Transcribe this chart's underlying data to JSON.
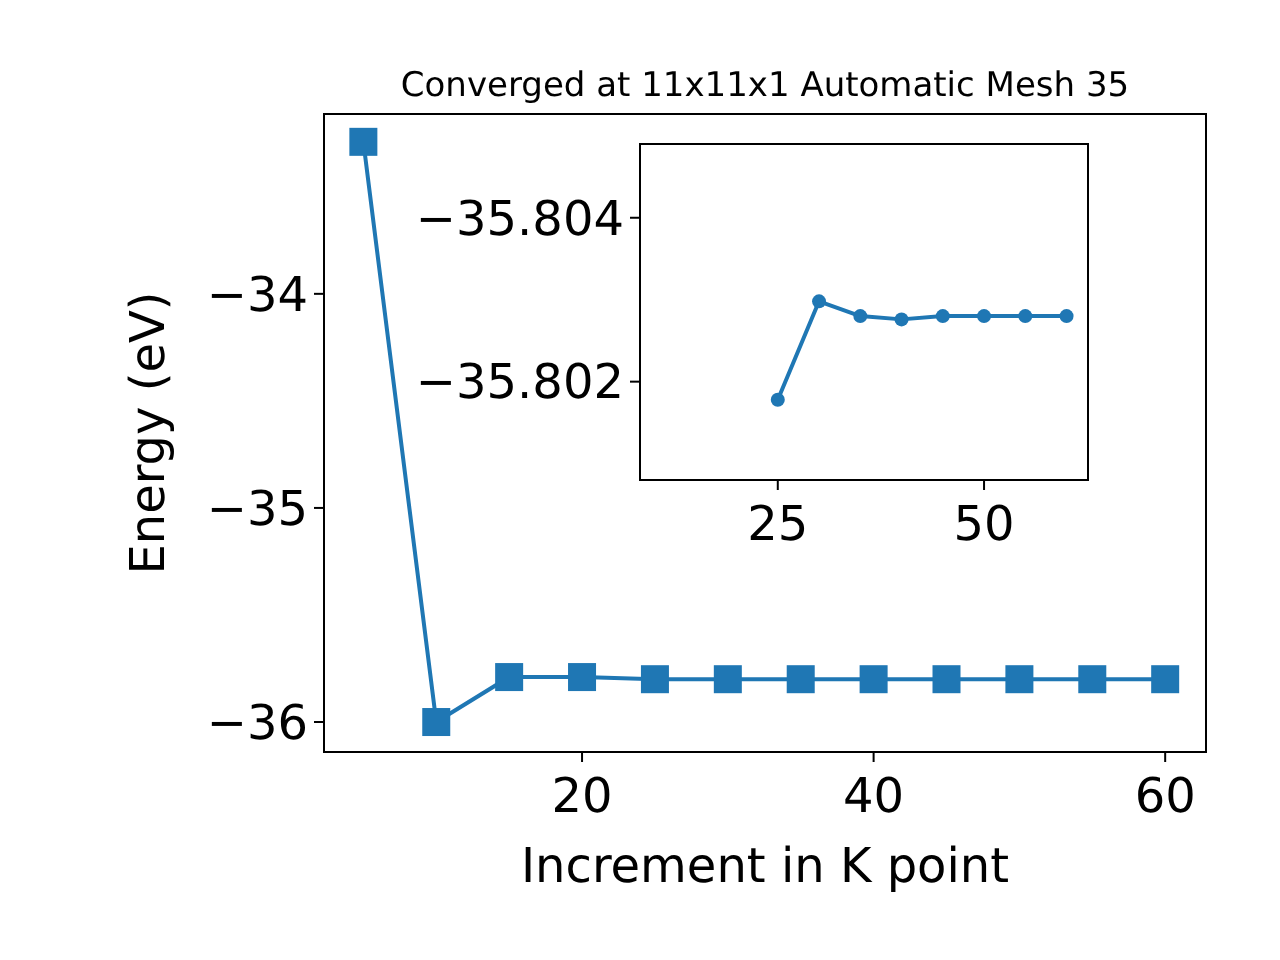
{
  "chart_data": [
    {
      "type": "line",
      "title": "Converged at 11x11x1 Automatic Mesh 35",
      "xlabel": "Increment in K point",
      "ylabel": "Energy (eV)",
      "marker": "square",
      "x": [
        5,
        10,
        15,
        20,
        25,
        30,
        35,
        40,
        45,
        50,
        55,
        60
      ],
      "series": [
        {
          "color": "#1f77b4",
          "values": [
            -33.29,
            -36.0,
            -35.79,
            -35.79,
            -35.8,
            -35.8,
            -35.8,
            -35.8,
            -35.8,
            -35.8,
            -35.8,
            -35.8
          ]
        }
      ],
      "xlim": [
        2.3,
        62.8
      ],
      "xticks": [
        20,
        40,
        60
      ],
      "ylim": [
        -36.14,
        -33.16
      ],
      "yticks": [
        -36,
        -35,
        -34
      ]
    },
    {
      "type": "line",
      "marker": "circle",
      "x": [
        25,
        30,
        35,
        40,
        45,
        50,
        55,
        60
      ],
      "series": [
        {
          "color": "#1f77b4",
          "values": [
            -35.80178,
            -35.80298,
            -35.8028,
            -35.80276,
            -35.8028,
            -35.8028,
            -35.8028,
            -35.8028
          ]
        }
      ],
      "xlim": [
        8.3,
        62.6
      ],
      "xticks": [
        25,
        50
      ],
      "ylim": [
        -35.8008,
        -35.8049
      ],
      "yticks": [
        -35.802,
        -35.804
      ]
    }
  ]
}
